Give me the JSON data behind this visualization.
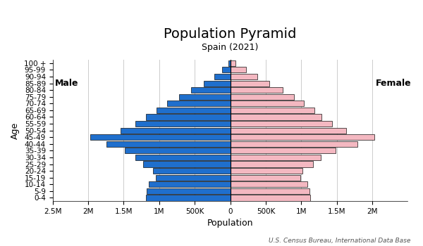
{
  "title": "Population Pyramid",
  "subtitle": "Spain (2021)",
  "xlabel": "Population",
  "ylabel": "Age",
  "source": "U.S. Census Bureau, International Data Base",
  "age_groups": [
    "0-4",
    "5-9",
    "10-14",
    "15-19",
    "20-24",
    "25-29",
    "30-34",
    "35-39",
    "40-44",
    "45-49",
    "50-54",
    "55-59",
    "60-64",
    "65-69",
    "70-74",
    "75-79",
    "80-84",
    "85-89",
    "90-94",
    "95-99",
    "100 +"
  ],
  "male": [
    1190000,
    1180000,
    1150000,
    1050000,
    1090000,
    1230000,
    1340000,
    1480000,
    1740000,
    1970000,
    1540000,
    1340000,
    1190000,
    1040000,
    890000,
    720000,
    550000,
    370000,
    220000,
    110000,
    30000
  ],
  "female": [
    1130000,
    1120000,
    1090000,
    990000,
    1020000,
    1170000,
    1280000,
    1480000,
    1790000,
    2030000,
    1630000,
    1430000,
    1290000,
    1190000,
    1040000,
    900000,
    740000,
    550000,
    380000,
    220000,
    75000
  ],
  "male_color": "#1f6fcd",
  "female_color": "#f4b8c1",
  "bar_edgecolor": "#111111",
  "bar_linewidth": 0.5,
  "background_color": "#ffffff",
  "grid_color": "#cccccc",
  "title_fontsize": 14,
  "subtitle_fontsize": 9,
  "label_fontsize": 9,
  "tick_fontsize": 7.5,
  "source_fontsize": 6.5,
  "male_label": "Male",
  "female_label": "Female",
  "tick_positions": [
    -2000000,
    -1500000,
    -1000000,
    -500000,
    0,
    500000,
    1000000,
    1500000,
    2000000
  ],
  "tick_labels": [
    "2M",
    "1.5M",
    "1M",
    "500K",
    "0",
    "500K",
    "1M",
    "1.5M",
    "2M"
  ],
  "extra_tick": -2500000,
  "extra_tick_label": "2.5M",
  "xlim": 2500000
}
